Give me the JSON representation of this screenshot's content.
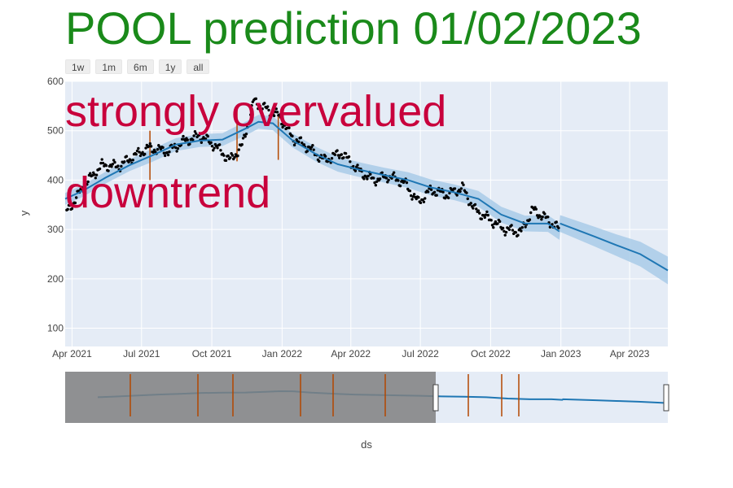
{
  "title": "POOL prediction 01/02/2023",
  "range_selector": [
    "1w",
    "1m",
    "6m",
    "1y",
    "all"
  ],
  "annotations": [
    "strongly overvalued",
    "downtrend"
  ],
  "colors": {
    "title": "#1a8a1a",
    "annotation": "#c8003c",
    "plot_bg": "#e5ecf6",
    "trend": "#1f77b4",
    "band": "#a9cbe8",
    "points": "#000000",
    "changepoints": "#b34700",
    "slider_mask": "#808080"
  },
  "chart_data": {
    "type": "line",
    "xlabel": "ds",
    "ylabel": "y",
    "xlim": [
      "2021-03-23",
      "2023-05-21"
    ],
    "ylim": [
      63,
      600
    ],
    "x_ticks": [
      "Apr 2021",
      "Jul 2021",
      "Oct 2021",
      "Jan 2022",
      "Apr 2022",
      "Jul 2022",
      "Oct 2022",
      "Jan 2023",
      "Apr 2023"
    ],
    "x_tick_dates": [
      "2021-04-01",
      "2021-07-01",
      "2021-10-01",
      "2022-01-01",
      "2022-04-01",
      "2022-07-01",
      "2022-10-01",
      "2023-01-01",
      "2023-04-01"
    ],
    "y_ticks": [
      100,
      200,
      300,
      400,
      500,
      600
    ],
    "trend": {
      "x": [
        "2021-03-23",
        "2021-04-15",
        "2021-05-15",
        "2021-06-15",
        "2021-07-15",
        "2021-08-15",
        "2021-09-15",
        "2021-10-15",
        "2021-11-15",
        "2021-12-01",
        "2021-12-20",
        "2022-01-15",
        "2022-02-15",
        "2022-03-15",
        "2022-04-15",
        "2022-05-15",
        "2022-06-15",
        "2022-07-15",
        "2022-08-15",
        "2022-09-15",
        "2022-10-15",
        "2022-11-15",
        "2022-12-15",
        "2022-12-30",
        "2022-12-31",
        "2023-02-15",
        "2023-03-15",
        "2023-04-15",
        "2023-05-21"
      ],
      "y": [
        362,
        378,
        405,
        430,
        450,
        472,
        480,
        482,
        505,
        518,
        515,
        480,
        452,
        432,
        420,
        410,
        400,
        385,
        375,
        362,
        330,
        312,
        312,
        296,
        312,
        285,
        268,
        250,
        217
      ]
    },
    "band_halfwidth": [
      12,
      12,
      12,
      12,
      13,
      13,
      13,
      13,
      14,
      14,
      14,
      14,
      15,
      15,
      15,
      15,
      16,
      16,
      16,
      16,
      16,
      16,
      17,
      17,
      17,
      20,
      22,
      25,
      28
    ],
    "observed_samples": {
      "x": [
        "2021-03-25",
        "2021-04-20",
        "2021-05-10",
        "2021-06-01",
        "2021-06-25",
        "2021-07-10",
        "2021-08-05",
        "2021-08-25",
        "2021-09-15",
        "2021-10-05",
        "2021-10-25",
        "2021-11-10",
        "2021-11-25",
        "2021-12-10",
        "2021-12-28",
        "2022-01-15",
        "2022-02-05",
        "2022-02-25",
        "2022-03-20",
        "2022-04-10",
        "2022-05-01",
        "2022-05-20",
        "2022-06-10",
        "2022-06-28",
        "2022-07-15",
        "2022-08-05",
        "2022-08-25",
        "2022-09-10",
        "2022-09-30",
        "2022-10-20",
        "2022-11-10",
        "2022-11-25",
        "2022-12-10",
        "2022-12-30"
      ],
      "y": [
        335,
        395,
        430,
        428,
        452,
        465,
        458,
        478,
        490,
        470,
        440,
        470,
        560,
        545,
        530,
        485,
        465,
        440,
        455,
        420,
        400,
        408,
        395,
        355,
        380,
        370,
        385,
        340,
        320,
        300,
        295,
        340,
        325,
        300
      ]
    },
    "changepoints": [
      {
        "x": "2021-07-12",
        "y1": 400,
        "y2": 500
      },
      {
        "x": "2021-11-03",
        "y1": 438,
        "y2": 551
      },
      {
        "x": "2021-12-27",
        "y1": 441,
        "y2": 531
      }
    ]
  }
}
